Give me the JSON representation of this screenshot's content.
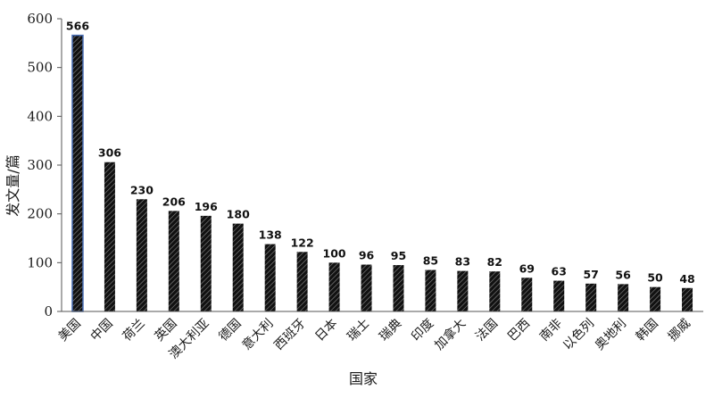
{
  "chart_data": {
    "type": "bar",
    "xlabel": "国家",
    "ylabel": "发文量/篇",
    "ylim": [
      0,
      600
    ],
    "yticks": [
      0,
      100,
      200,
      300,
      400,
      500,
      600
    ],
    "grid": false,
    "legend": "none",
    "categories": [
      "美国",
      "中国",
      "荷兰",
      "英国",
      "澳大利亚",
      "德国",
      "意大利",
      "西班牙",
      "日本",
      "瑞士",
      "瑞典",
      "印度",
      "加拿大",
      "法国",
      "巴西",
      "南非",
      "以色列",
      "奥地利",
      "韩国",
      "挪威"
    ],
    "values": [
      566,
      306,
      230,
      206,
      196,
      180,
      138,
      122,
      100,
      96,
      95,
      85,
      83,
      82,
      69,
      63,
      57,
      56,
      50,
      48
    ],
    "bar_fill": "#1c1c1c",
    "highlight_outline": "#4a6fb5"
  }
}
